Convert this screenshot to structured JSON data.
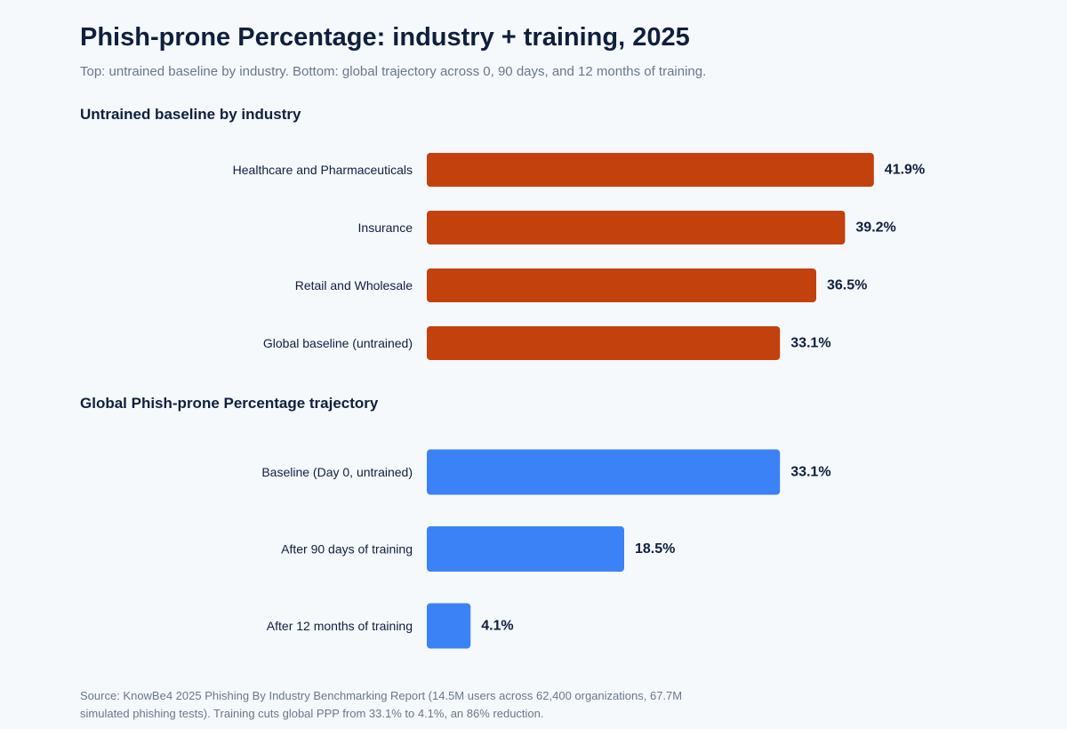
{
  "header": {
    "title": "Phish-prone Percentage: industry + training, 2025",
    "subtitle": "Top: untrained baseline by industry. Bottom: global trajectory across 0, 90 days, and 12 months of training."
  },
  "footer": {
    "source": "Source: KnowBe4 2025 Phishing By Industry Benchmarking Report (14.5M users across 62,400 organizations, 67.7M simulated phishing tests). Training cuts global PPP from 33.1% to 4.1%, an 86% reduction."
  },
  "chart_data": [
    {
      "type": "bar",
      "orientation": "horizontal",
      "title": "Untrained baseline by industry",
      "categories": [
        "Healthcare and Pharmaceuticals",
        "Insurance",
        "Retail and Wholesale",
        "Global baseline (untrained)"
      ],
      "values": [
        41.9,
        39.2,
        36.5,
        33.1
      ],
      "value_labels": [
        "41.9%",
        "39.2%",
        "36.5%",
        "33.1%"
      ],
      "unit": "%",
      "color": "#c2410c",
      "grid": false
    },
    {
      "type": "bar",
      "orientation": "horizontal",
      "title": "Global Phish-prone Percentage trajectory",
      "categories": [
        "Baseline (Day 0, untrained)",
        "After 90 days of training",
        "After 12 months of training"
      ],
      "values": [
        33.1,
        18.5,
        4.1
      ],
      "value_labels": [
        "33.1%",
        "18.5%",
        "4.1%"
      ],
      "unit": "%",
      "color": "#3b82f6",
      "grid": false
    }
  ]
}
